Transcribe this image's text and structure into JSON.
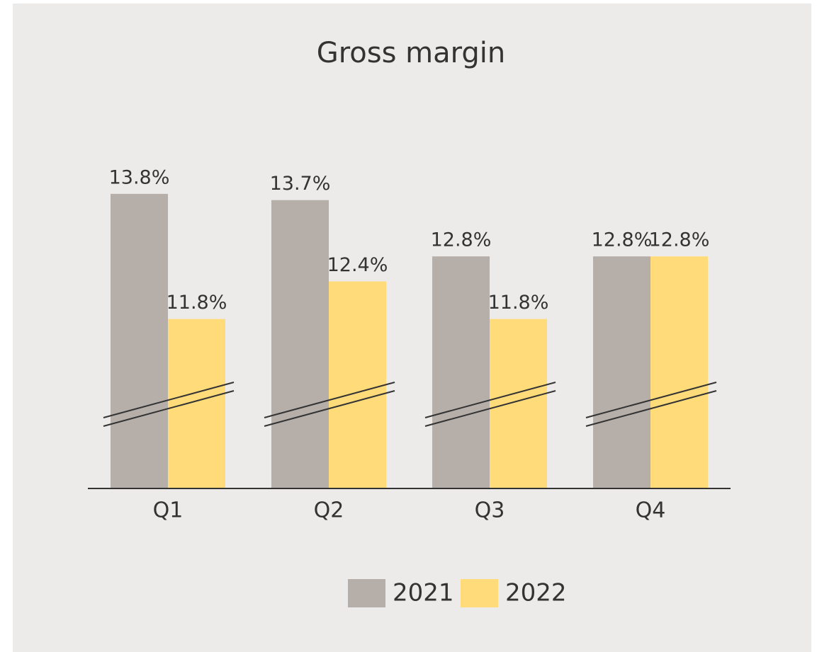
{
  "chart_data": {
    "type": "bar",
    "title": "Gross margin",
    "categories": [
      "Q1",
      "Q2",
      "Q3",
      "Q4"
    ],
    "series": [
      {
        "name": "2021",
        "color": "#b5aea9",
        "values": [
          13.8,
          13.7,
          12.8,
          12.8
        ],
        "value_labels": [
          "13.8%",
          "13.7%",
          "12.8%",
          "12.8%"
        ]
      },
      {
        "name": "2022",
        "color": "#ffdb7a",
        "values": [
          11.8,
          12.4,
          11.8,
          12.8
        ],
        "value_labels": [
          "11.8%",
          "12.4%",
          "11.8%",
          "12.8%"
        ]
      }
    ],
    "ylim": [
      9.09,
      14.5
    ],
    "axis_break": true,
    "legend": "bottom"
  }
}
